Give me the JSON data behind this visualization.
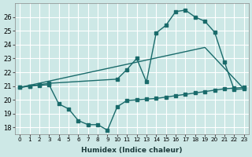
{
  "xlabel": "Humidex (Indice chaleur)",
  "bg_color": "#cde8e6",
  "grid_color": "#ffffff",
  "line_color": "#1a6b6b",
  "xlim": [
    -0.5,
    23.5
  ],
  "ylim": [
    17.5,
    27.0
  ],
  "xticks": [
    0,
    1,
    2,
    3,
    4,
    5,
    6,
    7,
    8,
    9,
    10,
    11,
    12,
    13,
    14,
    15,
    16,
    17,
    18,
    19,
    20,
    21,
    22,
    23
  ],
  "yticks": [
    18,
    19,
    20,
    21,
    22,
    23,
    24,
    25,
    26
  ],
  "curve1_x": [
    0,
    1,
    2,
    3,
    4,
    5,
    6,
    7,
    8,
    9,
    10,
    11,
    12,
    13,
    14,
    15,
    16,
    17,
    18,
    19,
    20,
    21,
    22,
    23
  ],
  "curve1_y": [
    20.9,
    21.0,
    21.05,
    21.1,
    19.7,
    19.35,
    18.5,
    18.2,
    18.2,
    17.8,
    19.5,
    19.95,
    20.0,
    20.05,
    20.1,
    20.2,
    20.3,
    20.4,
    20.5,
    20.6,
    20.7,
    20.8,
    20.85,
    20.9
  ],
  "curve2_x": [
    0,
    1,
    2,
    3,
    10,
    11,
    12,
    13,
    14,
    15,
    16,
    17,
    18,
    19,
    20,
    21,
    22,
    23
  ],
  "curve2_y": [
    20.9,
    21.0,
    21.1,
    21.2,
    21.5,
    22.2,
    23.0,
    21.3,
    24.85,
    25.4,
    26.4,
    26.5,
    26.0,
    25.7,
    24.9,
    22.75,
    20.75,
    20.8
  ],
  "curve3_x": [
    0,
    19,
    23
  ],
  "curve3_y": [
    20.9,
    23.8,
    20.8
  ]
}
